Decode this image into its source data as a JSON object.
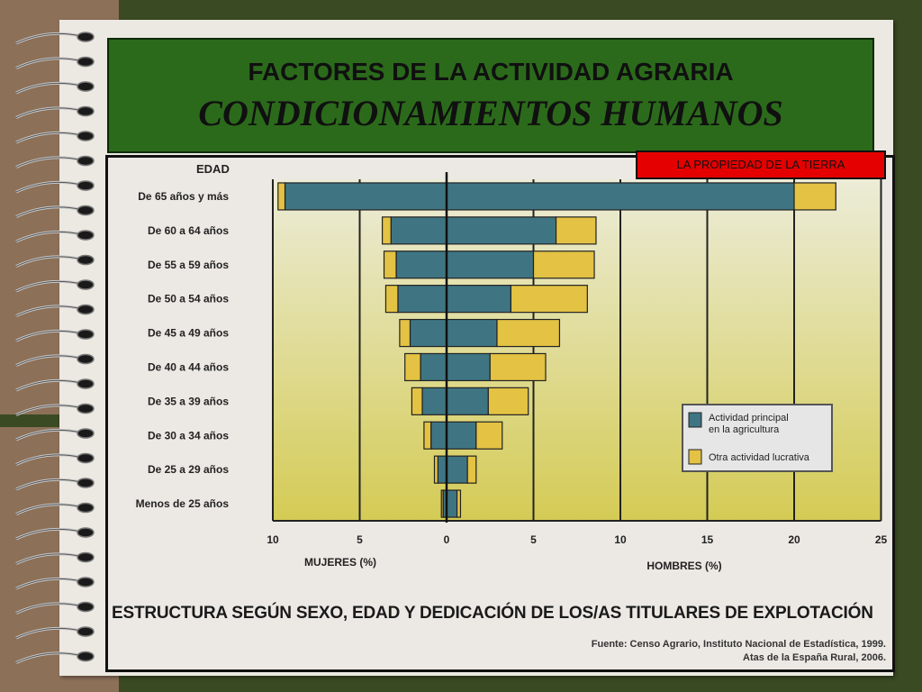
{
  "slide": {
    "title_line1": "FACTORES DE LA ACTIVIDAD AGRARIA",
    "title_line2": "CONDICIONAMIENTOS HUMANOS",
    "badge": "LA PROPIEDAD DE LA TIERRA"
  },
  "colors": {
    "principal": "#3f7583",
    "otra": "#e3c244",
    "title_bg": "#2b6a1b",
    "badge_bg": "#e40000"
  },
  "chart_data": {
    "type": "bar",
    "orientation": "horizontal-population-pyramid",
    "title": "ESTRUCTURA SEGÚN SEXO, EDAD Y DEDICACIÓN DE LOS/AS TITULARES DE EXPLOTACIÓN",
    "ylabel": "EDAD",
    "xlabel_left": "MUJERES (%)",
    "xlabel_right": "HOMBRES (%)",
    "xticks_left": [
      10,
      5
    ],
    "xticks_right": [
      0,
      5,
      10,
      15,
      20,
      25
    ],
    "xlim_left": [
      0,
      10
    ],
    "xlim_right": [
      0,
      25
    ],
    "grid": true,
    "legend_position": "right",
    "categories": [
      "De 65 años y más",
      "De 60 a 64 años",
      "De 55 a 59 años",
      "De 50 a 54 años",
      "De 45 a 49 años",
      "De 40 a 44 años",
      "De 35 a 39 años",
      "De 30 a 34 años",
      "De 25 a 29 años",
      "Menos de 25 años"
    ],
    "series": [
      {
        "name": "Actividad principal en la agricultura",
        "mujeres": [
          9.3,
          3.2,
          2.9,
          2.8,
          2.1,
          1.5,
          1.4,
          0.9,
          0.5,
          0.2
        ],
        "hombres": [
          20.0,
          6.3,
          5.0,
          3.7,
          2.9,
          2.5,
          2.4,
          1.7,
          1.2,
          0.6
        ]
      },
      {
        "name": "Otra actividad lucrativa",
        "mujeres": [
          0.4,
          0.5,
          0.7,
          0.7,
          0.6,
          0.9,
          0.6,
          0.4,
          0.2,
          0.1
        ],
        "hombres": [
          2.4,
          2.3,
          3.5,
          4.4,
          3.6,
          3.2,
          2.3,
          1.5,
          0.5,
          0.2
        ]
      }
    ],
    "source_line1": "Fuente: Censo Agrario, Instituto Nacional de Estadística, 1999.",
    "source_line2": "Atas de la España Rural, 2006."
  }
}
